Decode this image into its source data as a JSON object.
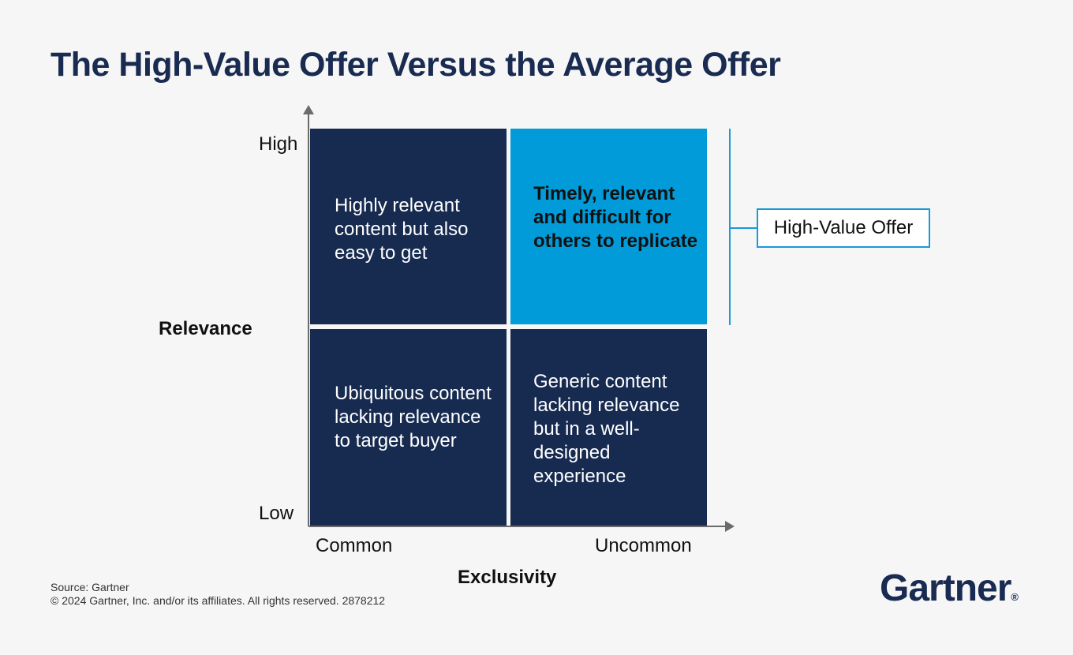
{
  "title": "The High-Value Offer Versus the Average Offer",
  "quadrants": {
    "top_left": "Highly relevant content but also easy to get",
    "top_right": "Timely, relevant and difficult for others to replicate",
    "bottom_left": "Ubiquitous content lacking relevance to target buyer",
    "bottom_right": "Generic content lacking relevance but in a well-designed experience"
  },
  "y_axis": {
    "label": "Relevance",
    "high": "High",
    "low": "Low"
  },
  "x_axis": {
    "label": "Exclusivity",
    "low": "Common",
    "high": "Uncommon"
  },
  "callout": "High-Value Offer",
  "footer": {
    "source": "Source: Gartner",
    "copyright": "© 2024 Gartner, Inc. and/or its affiliates. All rights reserved. 2878212"
  },
  "logo": {
    "text": "Gartner",
    "mark": "®"
  },
  "colors": {
    "navy": "#172b51",
    "highlight": "#009bd8",
    "title": "#1a2b52"
  }
}
